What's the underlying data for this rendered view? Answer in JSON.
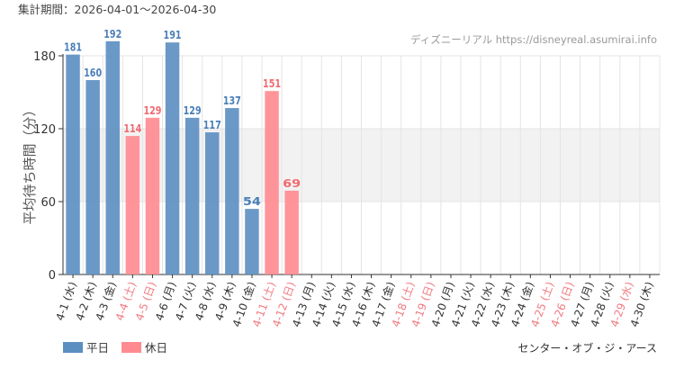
{
  "header": {
    "period": "集計期間：2026-04-01～2026-04-30",
    "credit": "ディズニーリアル https://disneyreal.asumirai.info"
  },
  "footer": {
    "attraction": "センター・オブ・ジ・アース"
  },
  "colors": {
    "weekday": "#5b8ec1",
    "holiday": "#ff8a8f",
    "weekday_label": "#4a7fb8",
    "holiday_label": "#f06a70",
    "band": "#f2f2f2"
  },
  "chart_data": {
    "type": "bar",
    "title": "",
    "ylabel": "平均待ち時間（分）",
    "ylim": [
      0,
      180
    ],
    "yticks": [
      0,
      60,
      120,
      180
    ],
    "shaded_band": [
      60,
      120
    ],
    "grid": true,
    "legend_position": "bottom-left",
    "legend": [
      {
        "name": "平日",
        "key": "weekday"
      },
      {
        "name": "休日",
        "key": "holiday"
      }
    ],
    "categories": [
      "4-1 (水)",
      "4-2 (木)",
      "4-3 (金)",
      "4-4 (土)",
      "4-5 (日)",
      "4-6 (月)",
      "4-7 (火)",
      "4-8 (水)",
      "4-9 (木)",
      "4-10 (金)",
      "4-11 (土)",
      "4-12 (日)",
      "4-13 (月)",
      "4-14 (火)",
      "4-15 (水)",
      "4-16 (木)",
      "4-17 (金)",
      "4-18 (土)",
      "4-19 (日)",
      "4-20 (月)",
      "4-21 (火)",
      "4-22 (水)",
      "4-23 (木)",
      "4-24 (金)",
      "4-25 (土)",
      "4-26 (日)",
      "4-27 (月)",
      "4-28 (火)",
      "4-29 (水)",
      "4-30 (木)"
    ],
    "holiday": [
      false,
      false,
      false,
      true,
      true,
      false,
      false,
      false,
      false,
      false,
      true,
      true,
      false,
      false,
      false,
      false,
      false,
      true,
      true,
      false,
      false,
      false,
      false,
      false,
      true,
      true,
      false,
      false,
      true,
      false
    ],
    "values": [
      181,
      160,
      192,
      114,
      129,
      191,
      129,
      117,
      137,
      54,
      151,
      69,
      null,
      null,
      null,
      null,
      null,
      null,
      null,
      null,
      null,
      null,
      null,
      null,
      null,
      null,
      null,
      null,
      null,
      null
    ]
  }
}
